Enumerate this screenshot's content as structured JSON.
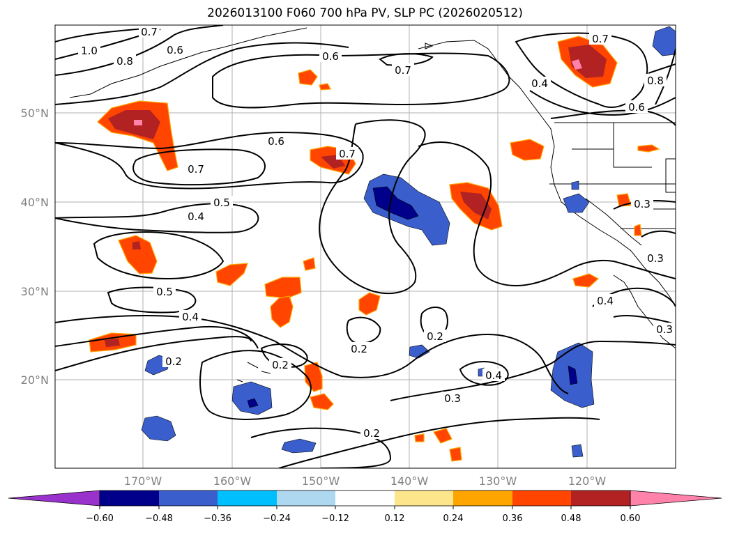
{
  "title": "2026013100 F060 700 hPa PV, SLP PC (2026020512)",
  "lat_labels": [
    "50°N",
    "40°N",
    "30°N",
    "20°N"
  ],
  "lon_labels": [
    "170°W",
    "160°W",
    "150°W",
    "140°W",
    "130°W",
    "120°W"
  ],
  "colorbar": {
    "ticks": [
      "−0.60",
      "−0.48",
      "−0.36",
      "−0.24",
      "−0.12",
      "0.12",
      "0.24",
      "0.36",
      "0.48",
      "0.60"
    ],
    "colors": [
      "#9932cc",
      "#00008b",
      "#3a5fcd",
      "#00bfff",
      "#add8f0",
      "#ffffff",
      "#fce58a",
      "#ffa500",
      "#ff4500",
      "#b22222",
      "#ff82ab"
    ]
  },
  "contour_labels": [
    "1.0",
    "0.8",
    "0.7",
    "0.6",
    "0.6",
    "0.7",
    "0.7",
    "0.4",
    "0.8",
    "0.6",
    "0.6",
    "0.7",
    "0.7",
    "0.5",
    "0.4",
    "0.3",
    "0.3",
    "0.5",
    "0.4",
    "0.4",
    "0.3",
    "0.2",
    "0.2",
    "0.2",
    "0.2",
    "0.4",
    "0.3",
    "0.2"
  ]
}
